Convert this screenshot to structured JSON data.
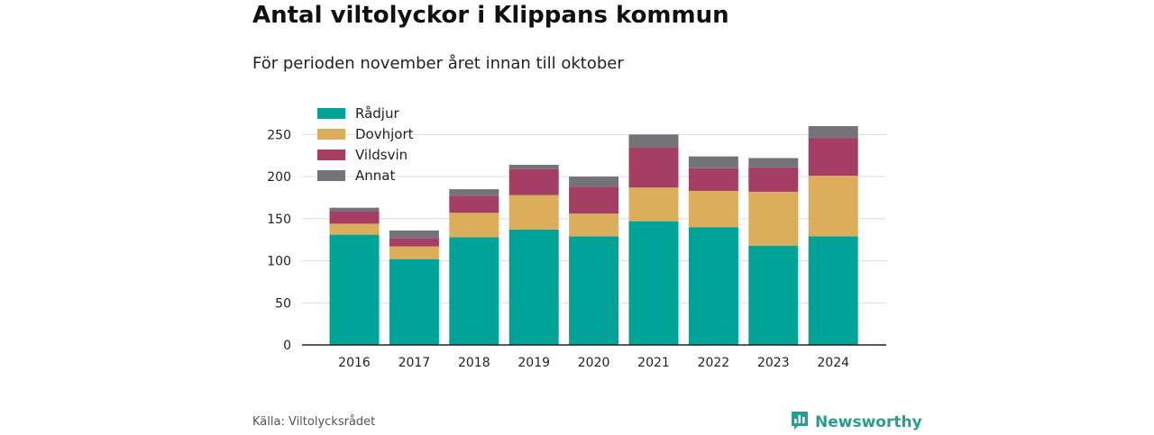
{
  "header": {
    "title": "Antal viltolyckor i Klippans kommun",
    "subtitle": "För perioden november året innan till oktober"
  },
  "footer": {
    "source": "Källa: Viltolycksrådet",
    "brand": "Newsworthy",
    "brand_icon": "newsworthy-logo-icon"
  },
  "chart_data": {
    "type": "bar",
    "stacked": true,
    "categories": [
      "2016",
      "2017",
      "2018",
      "2019",
      "2020",
      "2021",
      "2022",
      "2023",
      "2024"
    ],
    "series": [
      {
        "name": "Rådjur",
        "color": "#00a398",
        "values": [
          131,
          102,
          128,
          137,
          129,
          147,
          140,
          118,
          129
        ]
      },
      {
        "name": "Dovhjort",
        "color": "#dcae5c",
        "values": [
          13,
          15,
          29,
          41,
          27,
          40,
          43,
          64,
          72
        ]
      },
      {
        "name": "Vildsvin",
        "color": "#a53e63",
        "values": [
          15,
          10,
          20,
          31,
          32,
          48,
          27,
          29,
          45
        ]
      },
      {
        "name": "Annat",
        "color": "#747378",
        "values": [
          4,
          9,
          8,
          5,
          12,
          15,
          14,
          11,
          14
        ]
      }
    ],
    "yticks": [
      0,
      50,
      100,
      150,
      200,
      250
    ],
    "ylim": [
      0,
      260
    ],
    "grid": true,
    "legend_position": "top-left"
  }
}
